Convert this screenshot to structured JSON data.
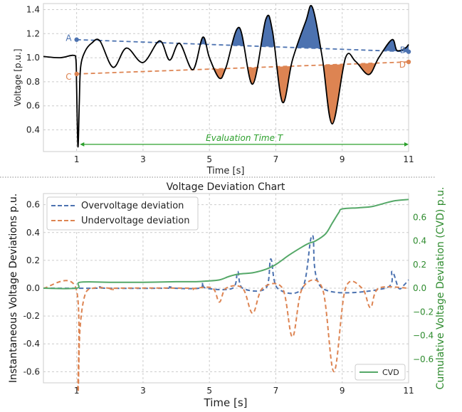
{
  "chart_data": [
    {
      "type": "line",
      "title": "",
      "xlabel": "Time [s]",
      "ylabel": "Voltage [p.u.]",
      "xlim": [
        0,
        11
      ],
      "ylim": [
        0.22,
        1.45
      ],
      "xticks": [
        1,
        3,
        5,
        7,
        9,
        11
      ],
      "xtick_labels": [
        "1",
        "3",
        "5",
        "7",
        "9",
        "11"
      ],
      "yticks": [
        0.4,
        0.6,
        0.8,
        1.0,
        1.2,
        1.4
      ],
      "ytick_labels": [
        "0.4",
        "0.6",
        "0.8",
        "1.0",
        "1.2",
        "1.4"
      ],
      "grid": true,
      "series": [
        {
          "x": [
            0,
            0.5,
            0.9,
            0.98,
            1.0,
            1.04,
            1.08,
            1.12,
            1.25,
            1.45,
            1.7,
            2.1,
            2.5,
            3.0,
            3.5,
            3.8,
            4.1,
            4.5,
            4.8,
            5.0,
            5.3,
            5.5,
            5.9,
            6.3,
            6.7,
            6.9,
            7.2,
            7.5,
            7.9,
            8.1,
            8.4,
            8.7,
            9.1,
            9.4,
            9.8,
            10.1,
            10.5,
            10.65,
            10.9,
            11.0
          ],
          "y": [
            1.01,
            1.0,
            1.02,
            0.98,
            0.75,
            0.26,
            0.62,
            0.92,
            1.05,
            1.12,
            1.14,
            0.92,
            1.08,
            0.96,
            1.14,
            0.98,
            1.12,
            0.9,
            1.17,
            1.0,
            0.83,
            0.92,
            1.25,
            0.78,
            1.32,
            1.22,
            0.63,
            0.98,
            1.3,
            1.42,
            1.0,
            0.45,
            1.0,
            0.97,
            0.86,
            1.0,
            1.15,
            1.06,
            1.08,
            1.11
          ]
        },
        {
          "color": "#4c72b0",
          "x": [
            1,
            11
          ],
          "y": [
            1.15,
            1.05
          ]
        },
        {
          "color": "#dd8452",
          "x": [
            1,
            11
          ],
          "y": [
            0.865,
            0.965
          ]
        }
      ],
      "point_labels": [
        {
          "label": "A",
          "x": 1,
          "y": 1.15,
          "color": "#4c72b0"
        },
        {
          "label": "B",
          "x": 11,
          "y": 1.05,
          "color": "#4c72b0"
        },
        {
          "label": "C",
          "x": 1,
          "y": 0.865,
          "color": "#dd8452"
        },
        {
          "label": "D",
          "x": 11,
          "y": 0.965,
          "color": "#dd8452"
        }
      ],
      "annotation": {
        "text": "Evaluation Time T",
        "x_start": 1.1,
        "x_end": 11,
        "y": 0.28,
        "color": "#2ca02c"
      }
    },
    {
      "type": "line",
      "title": "Voltage Deviation Chart",
      "xlabel": "Time [s]",
      "ylabel": "Instantaneous Voltage Deviations p.u.",
      "ylabel_right": "Cumulative Voltage Deviation (CVD) p.u.",
      "xlim": [
        0,
        11
      ],
      "ylim": [
        -0.68,
        0.68
      ],
      "ylim_right": [
        -0.8,
        0.8
      ],
      "xticks": [
        1,
        3,
        5,
        7,
        9,
        11
      ],
      "xtick_labels": [
        "1",
        "3",
        "5",
        "7",
        "9",
        "11"
      ],
      "yticks": [
        -0.6,
        -0.4,
        -0.2,
        0.0,
        0.2,
        0.4,
        0.6
      ],
      "ytick_labels": [
        "-0.6",
        "-0.4",
        "-0.2",
        "0.0",
        "0.2",
        "0.4",
        "0.6"
      ],
      "yticks_right": [
        -0.6,
        -0.4,
        -0.2,
        0.0,
        0.2,
        0.4,
        0.6
      ],
      "ytick_labels_right": [
        "−0.6",
        "−0.4",
        "−0.2",
        "0.0",
        "0.2",
        "0.4",
        "0.6"
      ],
      "grid": true,
      "legend_main": "upper left",
      "legend_cvd": "lower right",
      "series": [
        {
          "name": "Overvoltage deviation",
          "color": "#4c72b0",
          "style": "dashed",
          "x": [
            0,
            1.6,
            1.7,
            1.85,
            3.7,
            3.8,
            3.9,
            4.7,
            4.8,
            4.9,
            5.7,
            5.85,
            6.0,
            6.7,
            6.85,
            7.05,
            7.8,
            8.1,
            8.4,
            10.3,
            10.5,
            10.7,
            10.85,
            11.0
          ],
          "y": [
            0,
            0,
            0.01,
            0,
            0,
            0.01,
            0,
            0,
            0.04,
            0,
            0,
            0.12,
            0,
            0,
            0.21,
            0,
            0,
            0.38,
            0,
            0,
            0.12,
            0,
            0.02,
            0.06
          ]
        },
        {
          "name": "Undervoltage deviation",
          "color": "#dd8452",
          "style": "dashed",
          "x": [
            0,
            0.98,
            1.04,
            1.1,
            1.25,
            1.5,
            2.0,
            2.1,
            2.2,
            4.4,
            4.5,
            4.6,
            5.1,
            5.3,
            5.5,
            6.0,
            6.3,
            6.6,
            7.2,
            7.5,
            7.8,
            8.4,
            8.75,
            9.1,
            9.6,
            9.85,
            10.1,
            11.0
          ],
          "y": [
            0,
            0,
            -0.74,
            -0.3,
            -0.05,
            0,
            0,
            -0.01,
            0,
            0,
            -0.01,
            0,
            0,
            -0.1,
            0,
            0,
            -0.18,
            0,
            0,
            -0.35,
            0,
            0,
            -0.6,
            0,
            0,
            -0.14,
            0,
            0
          ]
        },
        {
          "name": "CVD",
          "color": "#55a868",
          "style": "solid",
          "axis": "right",
          "x": [
            0,
            1.0,
            1.1,
            2.0,
            3.0,
            4.0,
            4.6,
            4.9,
            5.3,
            5.6,
            5.9,
            6.3,
            6.7,
            7.0,
            7.4,
            7.8,
            8.0,
            8.2,
            8.5,
            8.7,
            8.9,
            9.0,
            9.5,
            9.9,
            10.3,
            10.6,
            11.0
          ],
          "y": [
            0,
            0,
            0.05,
            0.05,
            0.05,
            0.055,
            0.055,
            0.06,
            0.07,
            0.1,
            0.12,
            0.13,
            0.16,
            0.2,
            0.28,
            0.35,
            0.38,
            0.4,
            0.46,
            0.55,
            0.64,
            0.67,
            0.68,
            0.69,
            0.72,
            0.74,
            0.75
          ]
        }
      ]
    }
  ]
}
